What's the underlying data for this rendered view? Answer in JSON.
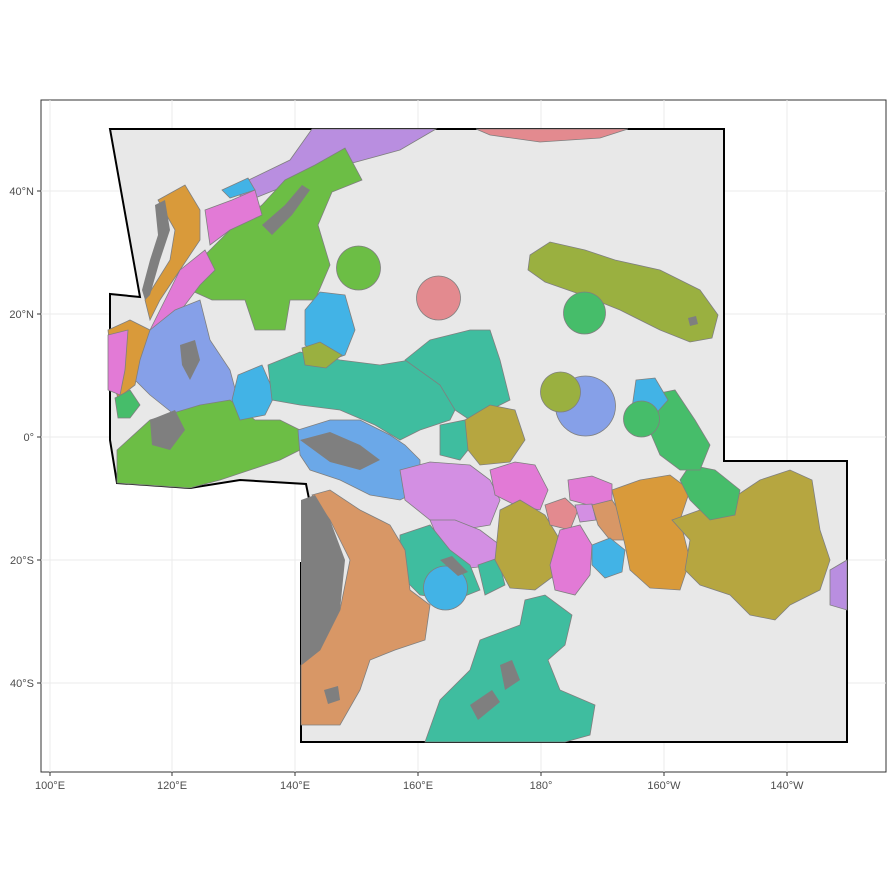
{
  "map": {
    "x_ticks": [
      "100°E",
      "120°E",
      "140°E",
      "160°E",
      "180°",
      "160°W",
      "140°W"
    ],
    "y_ticks": [
      "40°N",
      "20°N",
      "0°",
      "20°S",
      "40°S"
    ],
    "grid": true,
    "colors": {
      "background": "#ffffff",
      "study_area": "#e8e8e8",
      "outline": "#000000",
      "gridline": "#ebebeb",
      "land": "#7f7f7f"
    }
  },
  "zone_colors": [
    "#6cbe45",
    "#b98ee0",
    "#d99a3a",
    "#e27ad6",
    "#42b3e6",
    "#3fbd9f",
    "#9ab040",
    "#86a0e8",
    "#e38a8f",
    "#46bd6a",
    "#d89766",
    "#b6a640"
  ]
}
